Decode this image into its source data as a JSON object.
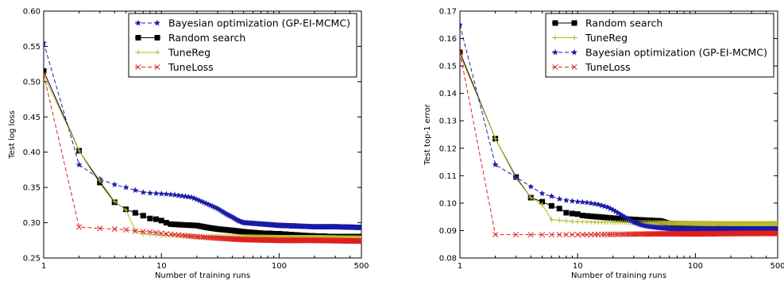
{
  "chart_data": [
    {
      "type": "line",
      "xscale": "log",
      "xlim": [
        1,
        500
      ],
      "ylim": [
        0.25,
        0.6
      ],
      "xlabel": "Number of training runs",
      "ylabel": "Test log loss",
      "xticks": [
        1,
        10,
        100,
        500
      ],
      "xtick_labels": [
        "1",
        "10",
        "100",
        "500"
      ],
      "yticks": [
        0.25,
        0.3,
        0.35,
        0.4,
        0.45,
        0.5,
        0.55,
        0.6
      ],
      "ytick_labels": [
        "0.25",
        "0.30",
        "0.35",
        "0.40",
        "0.45",
        "0.50",
        "0.55",
        "0.60"
      ],
      "grid": false,
      "legend_position": "top-right",
      "series": [
        {
          "name": "Bayesian optimization (GP-EI-MCMC)",
          "color": "#1a1aa8",
          "linestyle": "dashed",
          "marker": "star",
          "points": [
            [
              1,
              0.555
            ],
            [
              2,
              0.382
            ],
            [
              3,
              0.362
            ],
            [
              4,
              0.354
            ],
            [
              5,
              0.35
            ],
            [
              6,
              0.346
            ],
            [
              7,
              0.343
            ],
            [
              8,
              0.342
            ],
            [
              10,
              0.341
            ],
            [
              12,
              0.34
            ],
            [
              15,
              0.338
            ],
            [
              18,
              0.336
            ],
            [
              20,
              0.333
            ],
            [
              25,
              0.326
            ],
            [
              30,
              0.32
            ],
            [
              35,
              0.313
            ],
            [
              40,
              0.308
            ],
            [
              45,
              0.303
            ],
            [
              50,
              0.3
            ],
            [
              70,
              0.298
            ],
            [
              100,
              0.296
            ],
            [
              200,
              0.294
            ],
            [
              300,
              0.294
            ],
            [
              500,
              0.293
            ]
          ]
        },
        {
          "name": "Random search",
          "color": "#000000",
          "linestyle": "solid",
          "marker": "square",
          "points": [
            [
              1,
              0.515
            ],
            [
              2,
              0.402
            ],
            [
              3,
              0.357
            ],
            [
              4,
              0.329
            ],
            [
              5,
              0.319
            ],
            [
              6,
              0.314
            ],
            [
              7,
              0.31
            ],
            [
              8,
              0.306
            ],
            [
              9,
              0.305
            ],
            [
              10,
              0.303
            ],
            [
              11,
              0.3
            ],
            [
              12,
              0.298
            ],
            [
              15,
              0.297
            ],
            [
              20,
              0.296
            ],
            [
              25,
              0.293
            ],
            [
              30,
              0.291
            ],
            [
              40,
              0.289
            ],
            [
              50,
              0.287
            ],
            [
              70,
              0.285
            ],
            [
              100,
              0.284
            ],
            [
              150,
              0.282
            ],
            [
              200,
              0.281
            ],
            [
              300,
              0.28
            ],
            [
              500,
              0.28
            ]
          ]
        },
        {
          "name": "TuneReg",
          "color": "#b9b92e",
          "linestyle": "solid",
          "marker": "plus",
          "points": [
            [
              1,
              0.509
            ],
            [
              2,
              0.402
            ],
            [
              3,
              0.36
            ],
            [
              4,
              0.33
            ],
            [
              5,
              0.318
            ],
            [
              6,
              0.289
            ],
            [
              7,
              0.284
            ],
            [
              10,
              0.282
            ],
            [
              20,
              0.281
            ],
            [
              50,
              0.28
            ],
            [
              100,
              0.279
            ],
            [
              200,
              0.279
            ],
            [
              500,
              0.278
            ]
          ]
        },
        {
          "name": "TuneLoss",
          "color": "#e02020",
          "linestyle": "dashed",
          "marker": "x",
          "points": [
            [
              1,
              0.51
            ],
            [
              2,
              0.294
            ],
            [
              3,
              0.292
            ],
            [
              4,
              0.291
            ],
            [
              5,
              0.29
            ],
            [
              6,
              0.288
            ],
            [
              8,
              0.287
            ],
            [
              10,
              0.285
            ],
            [
              15,
              0.282
            ],
            [
              20,
              0.28
            ],
            [
              30,
              0.278
            ],
            [
              50,
              0.276
            ],
            [
              100,
              0.275
            ],
            [
              200,
              0.275
            ],
            [
              500,
              0.274
            ]
          ]
        }
      ]
    },
    {
      "type": "line",
      "xscale": "log",
      "xlim": [
        1,
        500
      ],
      "ylim": [
        0.08,
        0.17
      ],
      "xlabel": "Number of training runs",
      "ylabel": "Test top-1 error",
      "xticks": [
        1,
        10,
        100,
        500
      ],
      "xtick_labels": [
        "1",
        "10",
        "100",
        "500"
      ],
      "yticks": [
        0.08,
        0.09,
        0.1,
        0.11,
        0.12,
        0.13,
        0.14,
        0.15,
        0.16,
        0.17
      ],
      "ytick_labels": [
        "0.08",
        "0.09",
        "0.10",
        "0.11",
        "0.12",
        "0.13",
        "0.14",
        "0.15",
        "0.16",
        "0.17"
      ],
      "grid": false,
      "legend_position": "top-right",
      "series": [
        {
          "name": "Random search",
          "color": "#000000",
          "linestyle": "solid",
          "marker": "square",
          "points": [
            [
              1,
              0.155
            ],
            [
              2,
              0.1235
            ],
            [
              3,
              0.1095
            ],
            [
              4,
              0.102
            ],
            [
              5,
              0.1005
            ],
            [
              6,
              0.099
            ],
            [
              7,
              0.098
            ],
            [
              8,
              0.0965
            ],
            [
              9,
              0.0962
            ],
            [
              10,
              0.096
            ],
            [
              11,
              0.0955
            ],
            [
              13,
              0.0952
            ],
            [
              15,
              0.095
            ],
            [
              20,
              0.0945
            ],
            [
              30,
              0.094
            ],
            [
              40,
              0.0937
            ],
            [
              50,
              0.0935
            ],
            [
              60,
              0.0925
            ],
            [
              100,
              0.0922
            ],
            [
              200,
              0.092
            ],
            [
              500,
              0.092
            ]
          ]
        },
        {
          "name": "TuneReg",
          "color": "#b9b92e",
          "linestyle": "solid",
          "marker": "plus",
          "points": [
            [
              1,
              0.154
            ],
            [
              2,
              0.1235
            ],
            [
              3,
              0.109
            ],
            [
              4,
              0.102
            ],
            [
              5,
              0.0995
            ],
            [
              6,
              0.094
            ],
            [
              8,
              0.0935
            ],
            [
              10,
              0.0932
            ],
            [
              20,
              0.093
            ],
            [
              50,
              0.0928
            ],
            [
              100,
              0.0926
            ],
            [
              200,
              0.0925
            ],
            [
              500,
              0.0925
            ]
          ]
        },
        {
          "name": "Bayesian optimization (GP-EI-MCMC)",
          "color": "#1a1aa8",
          "linestyle": "dashed",
          "marker": "star",
          "points": [
            [
              1,
              0.165
            ],
            [
              2,
              0.114
            ],
            [
              3,
              0.1095
            ],
            [
              4,
              0.106
            ],
            [
              5,
              0.1035
            ],
            [
              6,
              0.1025
            ],
            [
              7,
              0.1015
            ],
            [
              8,
              0.101
            ],
            [
              10,
              0.1005
            ],
            [
              12,
              0.1002
            ],
            [
              15,
              0.0995
            ],
            [
              18,
              0.0985
            ],
            [
              20,
              0.0975
            ],
            [
              25,
              0.095
            ],
            [
              30,
              0.093
            ],
            [
              35,
              0.092
            ],
            [
              40,
              0.0915
            ],
            [
              50,
              0.091
            ],
            [
              70,
              0.0905
            ],
            [
              100,
              0.0905
            ],
            [
              200,
              0.0905
            ],
            [
              500,
              0.0905
            ]
          ]
        },
        {
          "name": "TuneLoss",
          "color": "#e02020",
          "linestyle": "dashed",
          "marker": "x",
          "points": [
            [
              1,
              0.155
            ],
            [
              2,
              0.0885
            ],
            [
              3,
              0.0885
            ],
            [
              5,
              0.0885
            ],
            [
              10,
              0.0885
            ],
            [
              20,
              0.0886
            ],
            [
              30,
              0.0887
            ],
            [
              50,
              0.0888
            ],
            [
              100,
              0.0888
            ],
            [
              200,
              0.0889
            ],
            [
              500,
              0.089
            ]
          ]
        }
      ]
    }
  ]
}
